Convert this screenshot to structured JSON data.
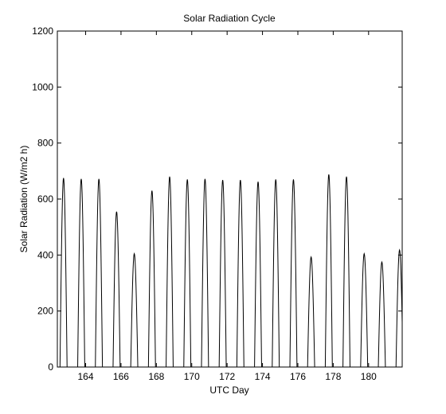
{
  "chart_data": {
    "type": "line",
    "title": "Solar Radiation Cycle",
    "xlabel": "UTC Day",
    "ylabel": "Solar Radiation (W/m2 h)",
    "xlim": [
      162.4,
      181.9
    ],
    "ylim": [
      0,
      1200
    ],
    "xticks": [
      164,
      166,
      168,
      170,
      172,
      174,
      176,
      178,
      180
    ],
    "yticks": [
      0,
      200,
      400,
      600,
      800,
      1000,
      1200
    ],
    "grid": false,
    "legend": "none",
    "line_color": "#000000",
    "daily_peaks": [
      {
        "day": 162.75,
        "peak": 675
      },
      {
        "day": 163.75,
        "peak": 672
      },
      {
        "day": 164.75,
        "peak": 672
      },
      {
        "day": 165.75,
        "peak": 555
      },
      {
        "day": 166.75,
        "peak": 405
      },
      {
        "day": 167.75,
        "peak": 630
      },
      {
        "day": 168.75,
        "peak": 680
      },
      {
        "day": 169.75,
        "peak": 670
      },
      {
        "day": 170.75,
        "peak": 672
      },
      {
        "day": 171.75,
        "peak": 668
      },
      {
        "day": 172.75,
        "peak": 668
      },
      {
        "day": 173.75,
        "peak": 662
      },
      {
        "day": 174.75,
        "peak": 670
      },
      {
        "day": 175.75,
        "peak": 670
      },
      {
        "day": 176.75,
        "peak": 393
      },
      {
        "day": 177.75,
        "peak": 688
      },
      {
        "day": 178.75,
        "peak": 680
      },
      {
        "day": 179.75,
        "peak": 405
      },
      {
        "day": 180.75,
        "peak": 375
      },
      {
        "day": 181.75,
        "peak": 418
      }
    ]
  }
}
